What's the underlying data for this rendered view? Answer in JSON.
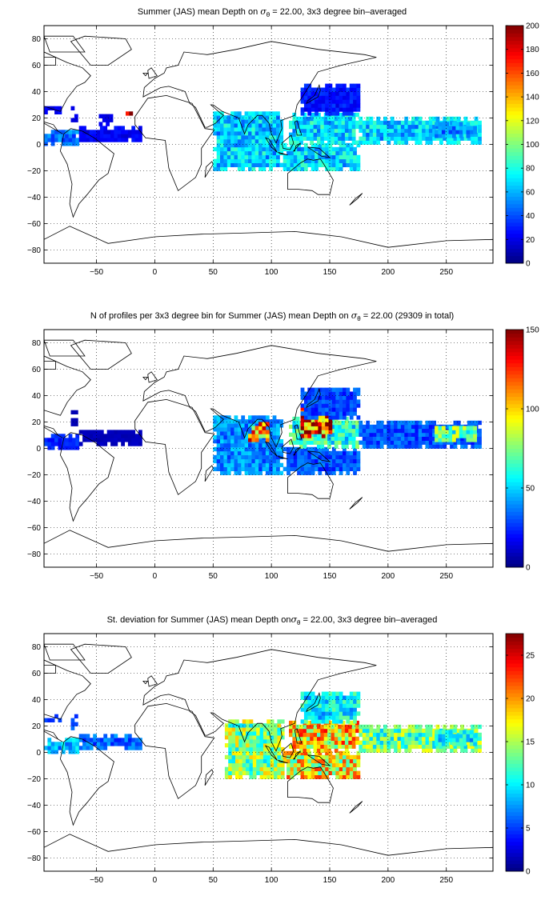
{
  "charts": [
    {
      "title_pre": "Summer (JAS) mean Depth on ",
      "title_post": " = 22.00, 3x3 degree bin–averaged",
      "sigma": "σ",
      "sigma_sub": "θ"
    },
    {
      "title_pre": "N of profiles per 3x3 degree bin for Summer (JAS) mean Depth on ",
      "title_post": " = 22.00 (29309 in total)",
      "sigma": "σ",
      "sigma_sub": "θ"
    },
    {
      "title_pre": "St. deviation for Summer (JAS) mean Depth on",
      "title_post": " = 22.00, 3x3 degree bin–averaged",
      "sigma": "σ",
      "sigma_sub": "θ"
    }
  ],
  "chart_data": [
    {
      "type": "heatmap",
      "xlim": [
        -95,
        290
      ],
      "ylim": [
        -90,
        90
      ],
      "xticks": [
        -50,
        0,
        50,
        100,
        150,
        200,
        250
      ],
      "yticks": [
        -80,
        -60,
        -40,
        -20,
        0,
        20,
        40,
        60,
        80
      ],
      "grid": true,
      "clim": [
        0,
        200
      ],
      "cticks": [
        0,
        20,
        40,
        60,
        80,
        100,
        120,
        140,
        160,
        180,
        200
      ],
      "colorbar": "jet",
      "regions": [
        {
          "lon": [
            -95,
            -65
          ],
          "lat": [
            -1,
            11
          ],
          "value": 45
        },
        {
          "lon": [
            -72,
            -67
          ],
          "lat": [
            17,
            27
          ],
          "value": 20
        },
        {
          "lon": [
            -95,
            -82
          ],
          "lat": [
            23,
            29
          ],
          "value": 20
        },
        {
          "lon": [
            -65,
            -12
          ],
          "lat": [
            2,
            14
          ],
          "value": 22
        },
        {
          "lon": [
            -48,
            -36
          ],
          "lat": [
            14,
            23
          ],
          "value": 18
        },
        {
          "lon": [
            -25,
            -20
          ],
          "lat": [
            19,
            23
          ],
          "value": 185
        },
        {
          "lon": [
            50,
            110
          ],
          "lat": [
            -20,
            25
          ],
          "value": 65
        },
        {
          "lon": [
            110,
            175
          ],
          "lat": [
            -20,
            0
          ],
          "value": 65
        },
        {
          "lon": [
            115,
            175
          ],
          "lat": [
            0,
            22
          ],
          "value": 68
        },
        {
          "lon": [
            125,
            175
          ],
          "lat": [
            22,
            45
          ],
          "value": 28
        },
        {
          "lon": [
            175,
            280
          ],
          "lat": [
            0,
            20
          ],
          "value": 65
        },
        {
          "lon": [
            240,
            275
          ],
          "lat": [
            5,
            16
          ],
          "value": 50
        }
      ]
    },
    {
      "type": "heatmap",
      "xlim": [
        -95,
        290
      ],
      "ylim": [
        -90,
        90
      ],
      "xticks": [
        -50,
        0,
        50,
        100,
        150,
        200,
        250
      ],
      "yticks": [
        -80,
        -60,
        -40,
        -20,
        0,
        20,
        40,
        60,
        80
      ],
      "grid": true,
      "clim": [
        0,
        150
      ],
      "cticks": [
        0,
        50,
        100,
        150
      ],
      "colorbar": "jet",
      "regions": [
        {
          "lon": [
            -95,
            -65
          ],
          "lat": [
            -1,
            11
          ],
          "value": 22
        },
        {
          "lon": [
            -72,
            -67
          ],
          "lat": [
            17,
            27
          ],
          "value": 8
        },
        {
          "lon": [
            -65,
            -12
          ],
          "lat": [
            2,
            14
          ],
          "value": 8
        },
        {
          "lon": [
            50,
            110
          ],
          "lat": [
            -20,
            25
          ],
          "value": 38
        },
        {
          "lon": [
            80,
            98
          ],
          "lat": [
            5,
            20
          ],
          "value": 105
        },
        {
          "lon": [
            110,
            175
          ],
          "lat": [
            -20,
            0
          ],
          "value": 30
        },
        {
          "lon": [
            115,
            175
          ],
          "lat": [
            0,
            22
          ],
          "value": 60
        },
        {
          "lon": [
            125,
            150
          ],
          "lat": [
            8,
            30
          ],
          "value": 125
        },
        {
          "lon": [
            125,
            175
          ],
          "lat": [
            22,
            45
          ],
          "value": 28
        },
        {
          "lon": [
            175,
            280
          ],
          "lat": [
            0,
            20
          ],
          "value": 30
        },
        {
          "lon": [
            240,
            275
          ],
          "lat": [
            5,
            16
          ],
          "value": 70
        }
      ]
    },
    {
      "type": "heatmap",
      "xlim": [
        -95,
        290
      ],
      "ylim": [
        -90,
        90
      ],
      "xticks": [
        -50,
        0,
        50,
        100,
        150,
        200,
        250
      ],
      "yticks": [
        -80,
        -60,
        -40,
        -20,
        0,
        20,
        40,
        60,
        80
      ],
      "grid": true,
      "clim": [
        0,
        27.5
      ],
      "cticks": [
        0,
        5,
        10,
        15,
        20,
        25
      ],
      "colorbar": "jet",
      "regions": [
        {
          "lon": [
            -95,
            -65
          ],
          "lat": [
            -1,
            11
          ],
          "value": 8
        },
        {
          "lon": [
            -72,
            -67
          ],
          "lat": [
            17,
            27
          ],
          "value": 5
        },
        {
          "lon": [
            -95,
            -82
          ],
          "lat": [
            23,
            29
          ],
          "value": 4
        },
        {
          "lon": [
            -65,
            -12
          ],
          "lat": [
            2,
            14
          ],
          "value": 6
        },
        {
          "lon": [
            60,
            110
          ],
          "lat": [
            -20,
            25
          ],
          "value": 14
        },
        {
          "lon": [
            110,
            175
          ],
          "lat": [
            -20,
            0
          ],
          "value": 17
        },
        {
          "lon": [
            115,
            175
          ],
          "lat": [
            0,
            22
          ],
          "value": 18
        },
        {
          "lon": [
            125,
            175
          ],
          "lat": [
            22,
            45
          ],
          "value": 10
        },
        {
          "lon": [
            175,
            280
          ],
          "lat": [
            0,
            20
          ],
          "value": 13
        },
        {
          "lon": [
            240,
            275
          ],
          "lat": [
            5,
            16
          ],
          "value": 10
        }
      ]
    }
  ]
}
